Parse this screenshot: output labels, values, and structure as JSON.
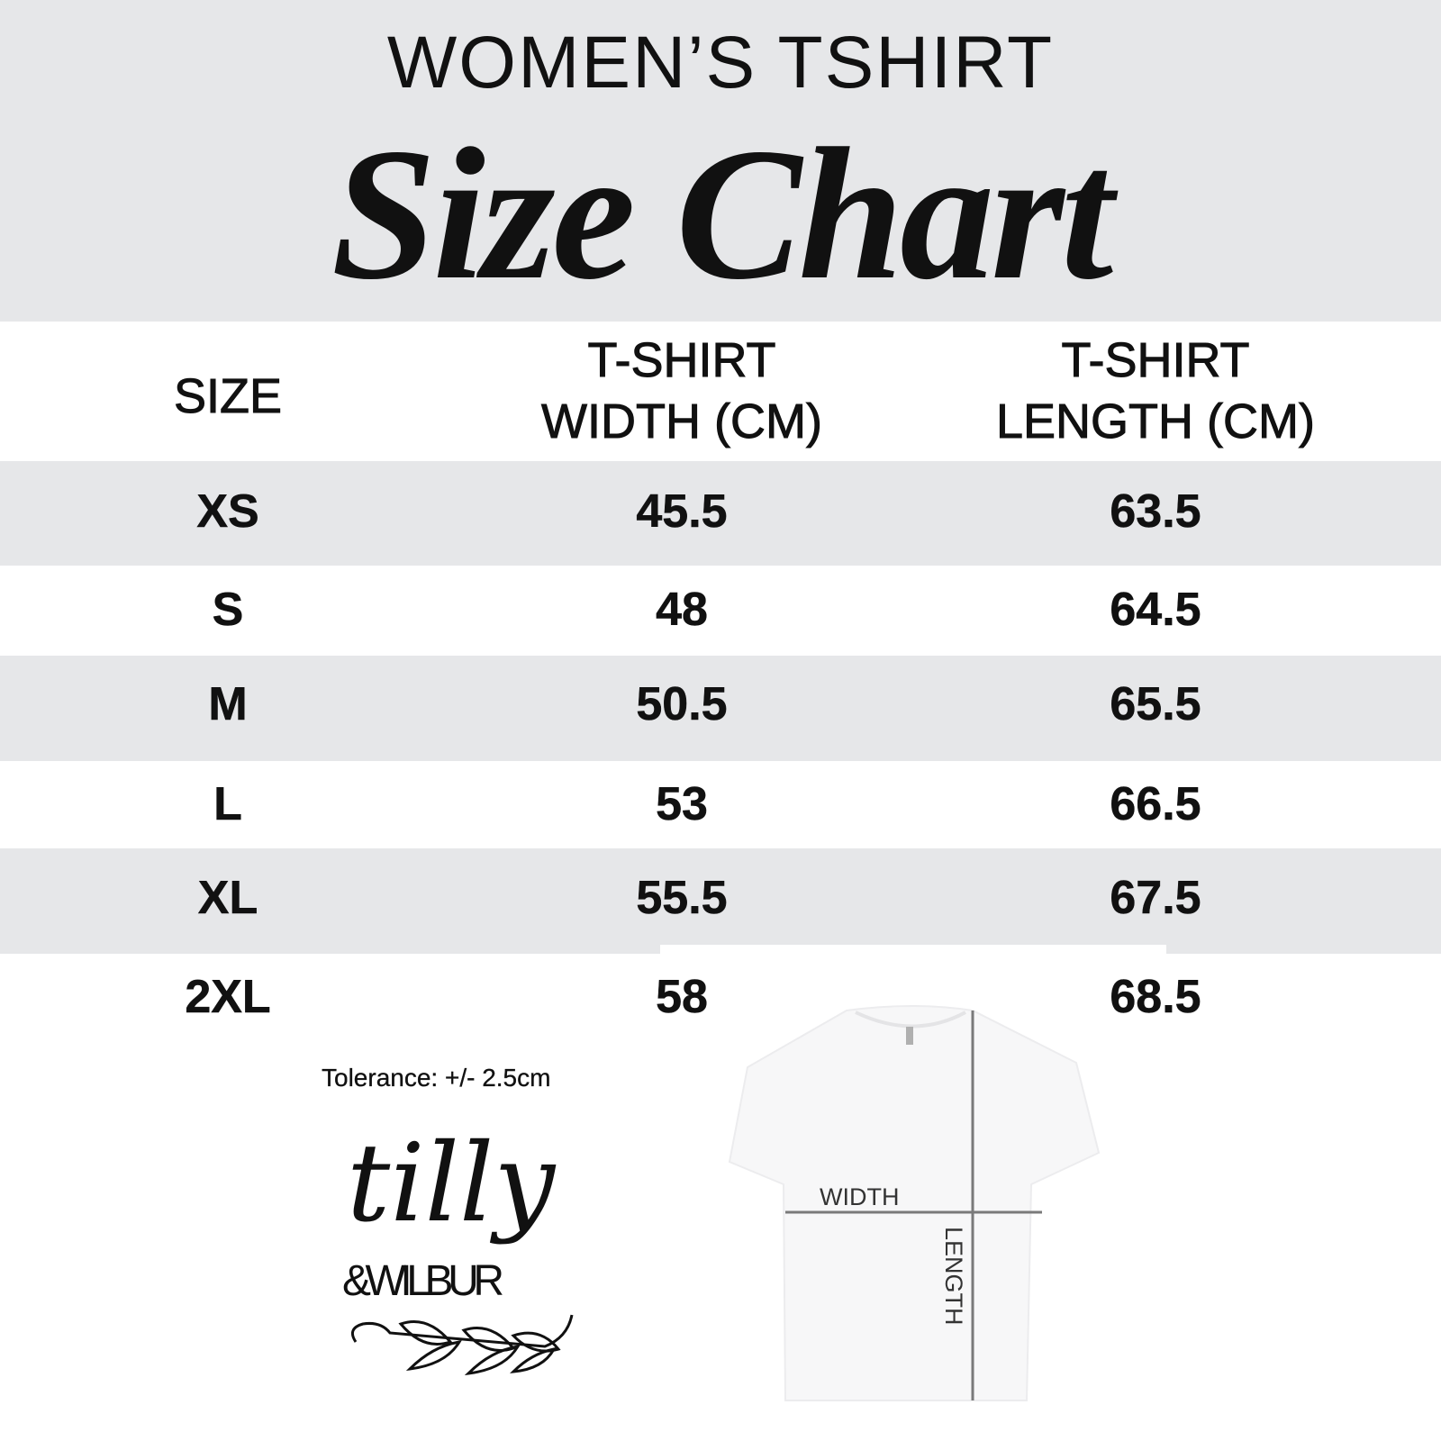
{
  "header": {
    "subtitle": "WOMEN’S TSHIRT",
    "title": "Size Chart",
    "background_color": "#e6e7e9"
  },
  "table": {
    "columns": [
      "SIZE",
      "T-SHIRT WIDTH (CM)",
      "T-SHIRT LENGTH (CM)"
    ],
    "column_lines": [
      [
        "SIZE"
      ],
      [
        "T-SHIRT",
        "WIDTH (CM)"
      ],
      [
        "T-SHIRT",
        "LENGTH (CM)"
      ]
    ],
    "rows": [
      {
        "size": "XS",
        "width": "45.5",
        "length": "63.5"
      },
      {
        "size": "S",
        "width": "48",
        "length": "64.5"
      },
      {
        "size": "M",
        "width": "50.5",
        "length": "65.5"
      },
      {
        "size": "L",
        "width": "53",
        "length": "66.5"
      },
      {
        "size": "XL",
        "width": "55.5",
        "length": "67.5"
      },
      {
        "size": "2XL",
        "width": "58",
        "length": "68.5"
      }
    ],
    "stripe_color": "#e6e7e9"
  },
  "tolerance": "Tolerance: +/- 2.5cm",
  "diagram": {
    "width_label": "WIDTH",
    "length_label": "LENGTH",
    "line_color": "#7a7a7a"
  },
  "logo": {
    "line1": "tilly",
    "line2": "&WILBUR"
  }
}
